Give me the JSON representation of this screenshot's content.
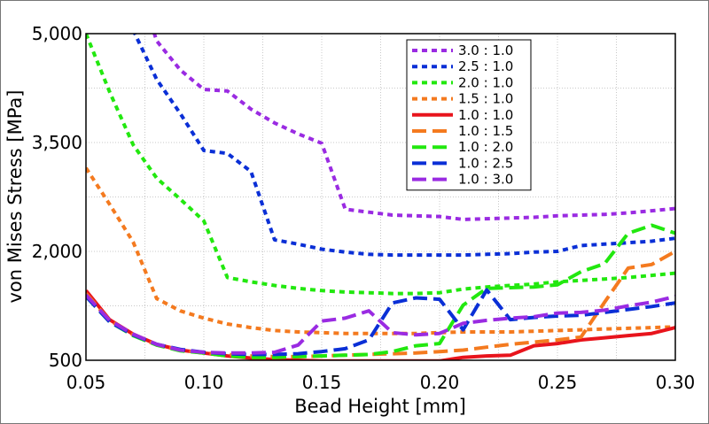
{
  "chart_data": {
    "type": "line",
    "title": "",
    "xlabel": "Bead Height [mm]",
    "ylabel": "von Mises Stress [MPa]",
    "xlim": [
      0.05,
      0.3
    ],
    "ylim": [
      500,
      5000
    ],
    "xticks": [
      0.05,
      0.1,
      0.15,
      0.2,
      0.25,
      0.3
    ],
    "xtick_labels": [
      "0.05",
      "0.10",
      "0.15",
      "0.20",
      "0.25",
      "0.30"
    ],
    "yticks": [
      500,
      2000,
      3500,
      5000
    ],
    "ytick_labels": [
      "500",
      "2,000",
      "3,500",
      "5,000"
    ],
    "grid": true,
    "legend_position": "top-center",
    "series": [
      {
        "name": "3.0 : 1.0",
        "color": "#9a2be2",
        "style": "dotted",
        "x": [
          0.075,
          0.08,
          0.09,
          0.1,
          0.11,
          0.12,
          0.13,
          0.14,
          0.15,
          0.16,
          0.17,
          0.18,
          0.19,
          0.2,
          0.21,
          0.22,
          0.23,
          0.24,
          0.25,
          0.26,
          0.27,
          0.28,
          0.29,
          0.3
        ],
        "y": [
          5400,
          4900,
          4500,
          4230,
          4210,
          3960,
          3770,
          3620,
          3490,
          2580,
          2540,
          2500,
          2490,
          2480,
          2440,
          2450,
          2460,
          2470,
          2490,
          2500,
          2510,
          2530,
          2560,
          2590
        ]
      },
      {
        "name": "2.5 : 1.0",
        "color": "#0a2fd6",
        "style": "dotted",
        "x": [
          0.07,
          0.08,
          0.09,
          0.1,
          0.11,
          0.12,
          0.13,
          0.14,
          0.15,
          0.16,
          0.17,
          0.18,
          0.19,
          0.2,
          0.21,
          0.22,
          0.23,
          0.24,
          0.25,
          0.26,
          0.27,
          0.28,
          0.29,
          0.3
        ],
        "y": [
          5050,
          4370,
          3900,
          3390,
          3350,
          3100,
          2160,
          2100,
          2030,
          1990,
          1960,
          1950,
          1950,
          1950,
          1950,
          1960,
          1970,
          1990,
          2000,
          2080,
          2100,
          2120,
          2140,
          2180
        ]
      },
      {
        "name": "2.0 : 1.0",
        "color": "#22e80f",
        "style": "dotted",
        "x": [
          0.05,
          0.06,
          0.07,
          0.08,
          0.09,
          0.1,
          0.11,
          0.12,
          0.13,
          0.14,
          0.15,
          0.16,
          0.17,
          0.18,
          0.19,
          0.2,
          0.21,
          0.22,
          0.23,
          0.24,
          0.25,
          0.26,
          0.27,
          0.28,
          0.29,
          0.3
        ],
        "y": [
          5000,
          4200,
          3470,
          3010,
          2720,
          2420,
          1640,
          1580,
          1530,
          1490,
          1460,
          1440,
          1430,
          1420,
          1420,
          1430,
          1480,
          1510,
          1530,
          1550,
          1580,
          1600,
          1620,
          1640,
          1670,
          1700
        ]
      },
      {
        "name": "1.5 : 1.0",
        "color": "#f47a1f",
        "style": "dotted",
        "x": [
          0.05,
          0.06,
          0.07,
          0.08,
          0.09,
          0.1,
          0.11,
          0.12,
          0.13,
          0.14,
          0.15,
          0.16,
          0.17,
          0.18,
          0.19,
          0.2,
          0.21,
          0.22,
          0.23,
          0.24,
          0.25,
          0.26,
          0.27,
          0.28,
          0.29,
          0.3
        ],
        "y": [
          3150,
          2650,
          2130,
          1350,
          1180,
          1080,
          1000,
          950,
          910,
          890,
          880,
          870,
          870,
          870,
          870,
          880,
          890,
          890,
          890,
          900,
          910,
          920,
          930,
          940,
          950,
          960
        ]
      },
      {
        "name": "1.0 : 1.0",
        "color": "#e8141c",
        "style": "solid",
        "x": [
          0.05,
          0.06,
          0.07,
          0.08,
          0.09,
          0.1,
          0.11,
          0.12,
          0.13,
          0.14,
          0.15,
          0.16,
          0.17,
          0.18,
          0.19,
          0.2,
          0.21,
          0.22,
          0.23,
          0.24,
          0.25,
          0.26,
          0.27,
          0.28,
          0.29,
          0.3
        ],
        "y": [
          1460,
          1060,
          860,
          720,
          640,
          600,
          560,
          530,
          510,
          500,
          490,
          490,
          490,
          490,
          490,
          490,
          540,
          560,
          570,
          700,
          730,
          780,
          810,
          840,
          870,
          950
        ]
      },
      {
        "name": "1.0 : 1.5",
        "color": "#f47a1f",
        "style": "dashed",
        "x": [
          0.05,
          0.06,
          0.07,
          0.08,
          0.09,
          0.1,
          0.11,
          0.12,
          0.13,
          0.14,
          0.15,
          0.16,
          0.17,
          0.18,
          0.19,
          0.2,
          0.21,
          0.22,
          0.23,
          0.24,
          0.25,
          0.26,
          0.27,
          0.28,
          0.29,
          0.3
        ],
        "y": [
          1420,
          1050,
          850,
          710,
          640,
          600,
          580,
          560,
          550,
          550,
          560,
          570,
          580,
          590,
          600,
          620,
          640,
          680,
          720,
          750,
          780,
          820,
          1300,
          1770,
          1820,
          2000
        ]
      },
      {
        "name": "1.0 : 2.0",
        "color": "#22e80f",
        "style": "dashed",
        "x": [
          0.05,
          0.06,
          0.07,
          0.08,
          0.09,
          0.1,
          0.11,
          0.12,
          0.13,
          0.14,
          0.15,
          0.16,
          0.17,
          0.18,
          0.19,
          0.2,
          0.21,
          0.22,
          0.23,
          0.24,
          0.25,
          0.26,
          0.27,
          0.28,
          0.29,
          0.3
        ],
        "y": [
          1380,
          1030,
          840,
          710,
          630,
          600,
          560,
          540,
          540,
          550,
          560,
          570,
          580,
          620,
          700,
          730,
          1260,
          1490,
          1500,
          1510,
          1540,
          1720,
          1830,
          2250,
          2360,
          2250
        ]
      },
      {
        "name": "1.0 : 2.5",
        "color": "#0a2fd6",
        "style": "dashed",
        "x": [
          0.05,
          0.06,
          0.07,
          0.08,
          0.09,
          0.1,
          0.11,
          0.12,
          0.13,
          0.14,
          0.15,
          0.16,
          0.17,
          0.18,
          0.19,
          0.2,
          0.21,
          0.22,
          0.23,
          0.24,
          0.25,
          0.26,
          0.27,
          0.28,
          0.29,
          0.3
        ],
        "y": [
          1380,
          1030,
          850,
          720,
          650,
          610,
          590,
          580,
          580,
          590,
          620,
          660,
          780,
          1290,
          1360,
          1340,
          920,
          1470,
          1060,
          1090,
          1110,
          1120,
          1160,
          1200,
          1240,
          1290
        ]
      },
      {
        "name": "1.0 : 3.0",
        "color": "#9a2be2",
        "style": "dashed",
        "x": [
          0.05,
          0.06,
          0.07,
          0.08,
          0.09,
          0.1,
          0.11,
          0.12,
          0.13,
          0.14,
          0.15,
          0.16,
          0.17,
          0.18,
          0.19,
          0.2,
          0.21,
          0.22,
          0.23,
          0.24,
          0.25,
          0.26,
          0.27,
          0.28,
          0.29,
          0.3
        ],
        "y": [
          1400,
          1050,
          860,
          720,
          640,
          610,
          600,
          600,
          610,
          710,
          1040,
          1080,
          1180,
          880,
          850,
          870,
          1010,
          1050,
          1080,
          1100,
          1150,
          1160,
          1190,
          1250,
          1300,
          1380
        ]
      }
    ]
  }
}
